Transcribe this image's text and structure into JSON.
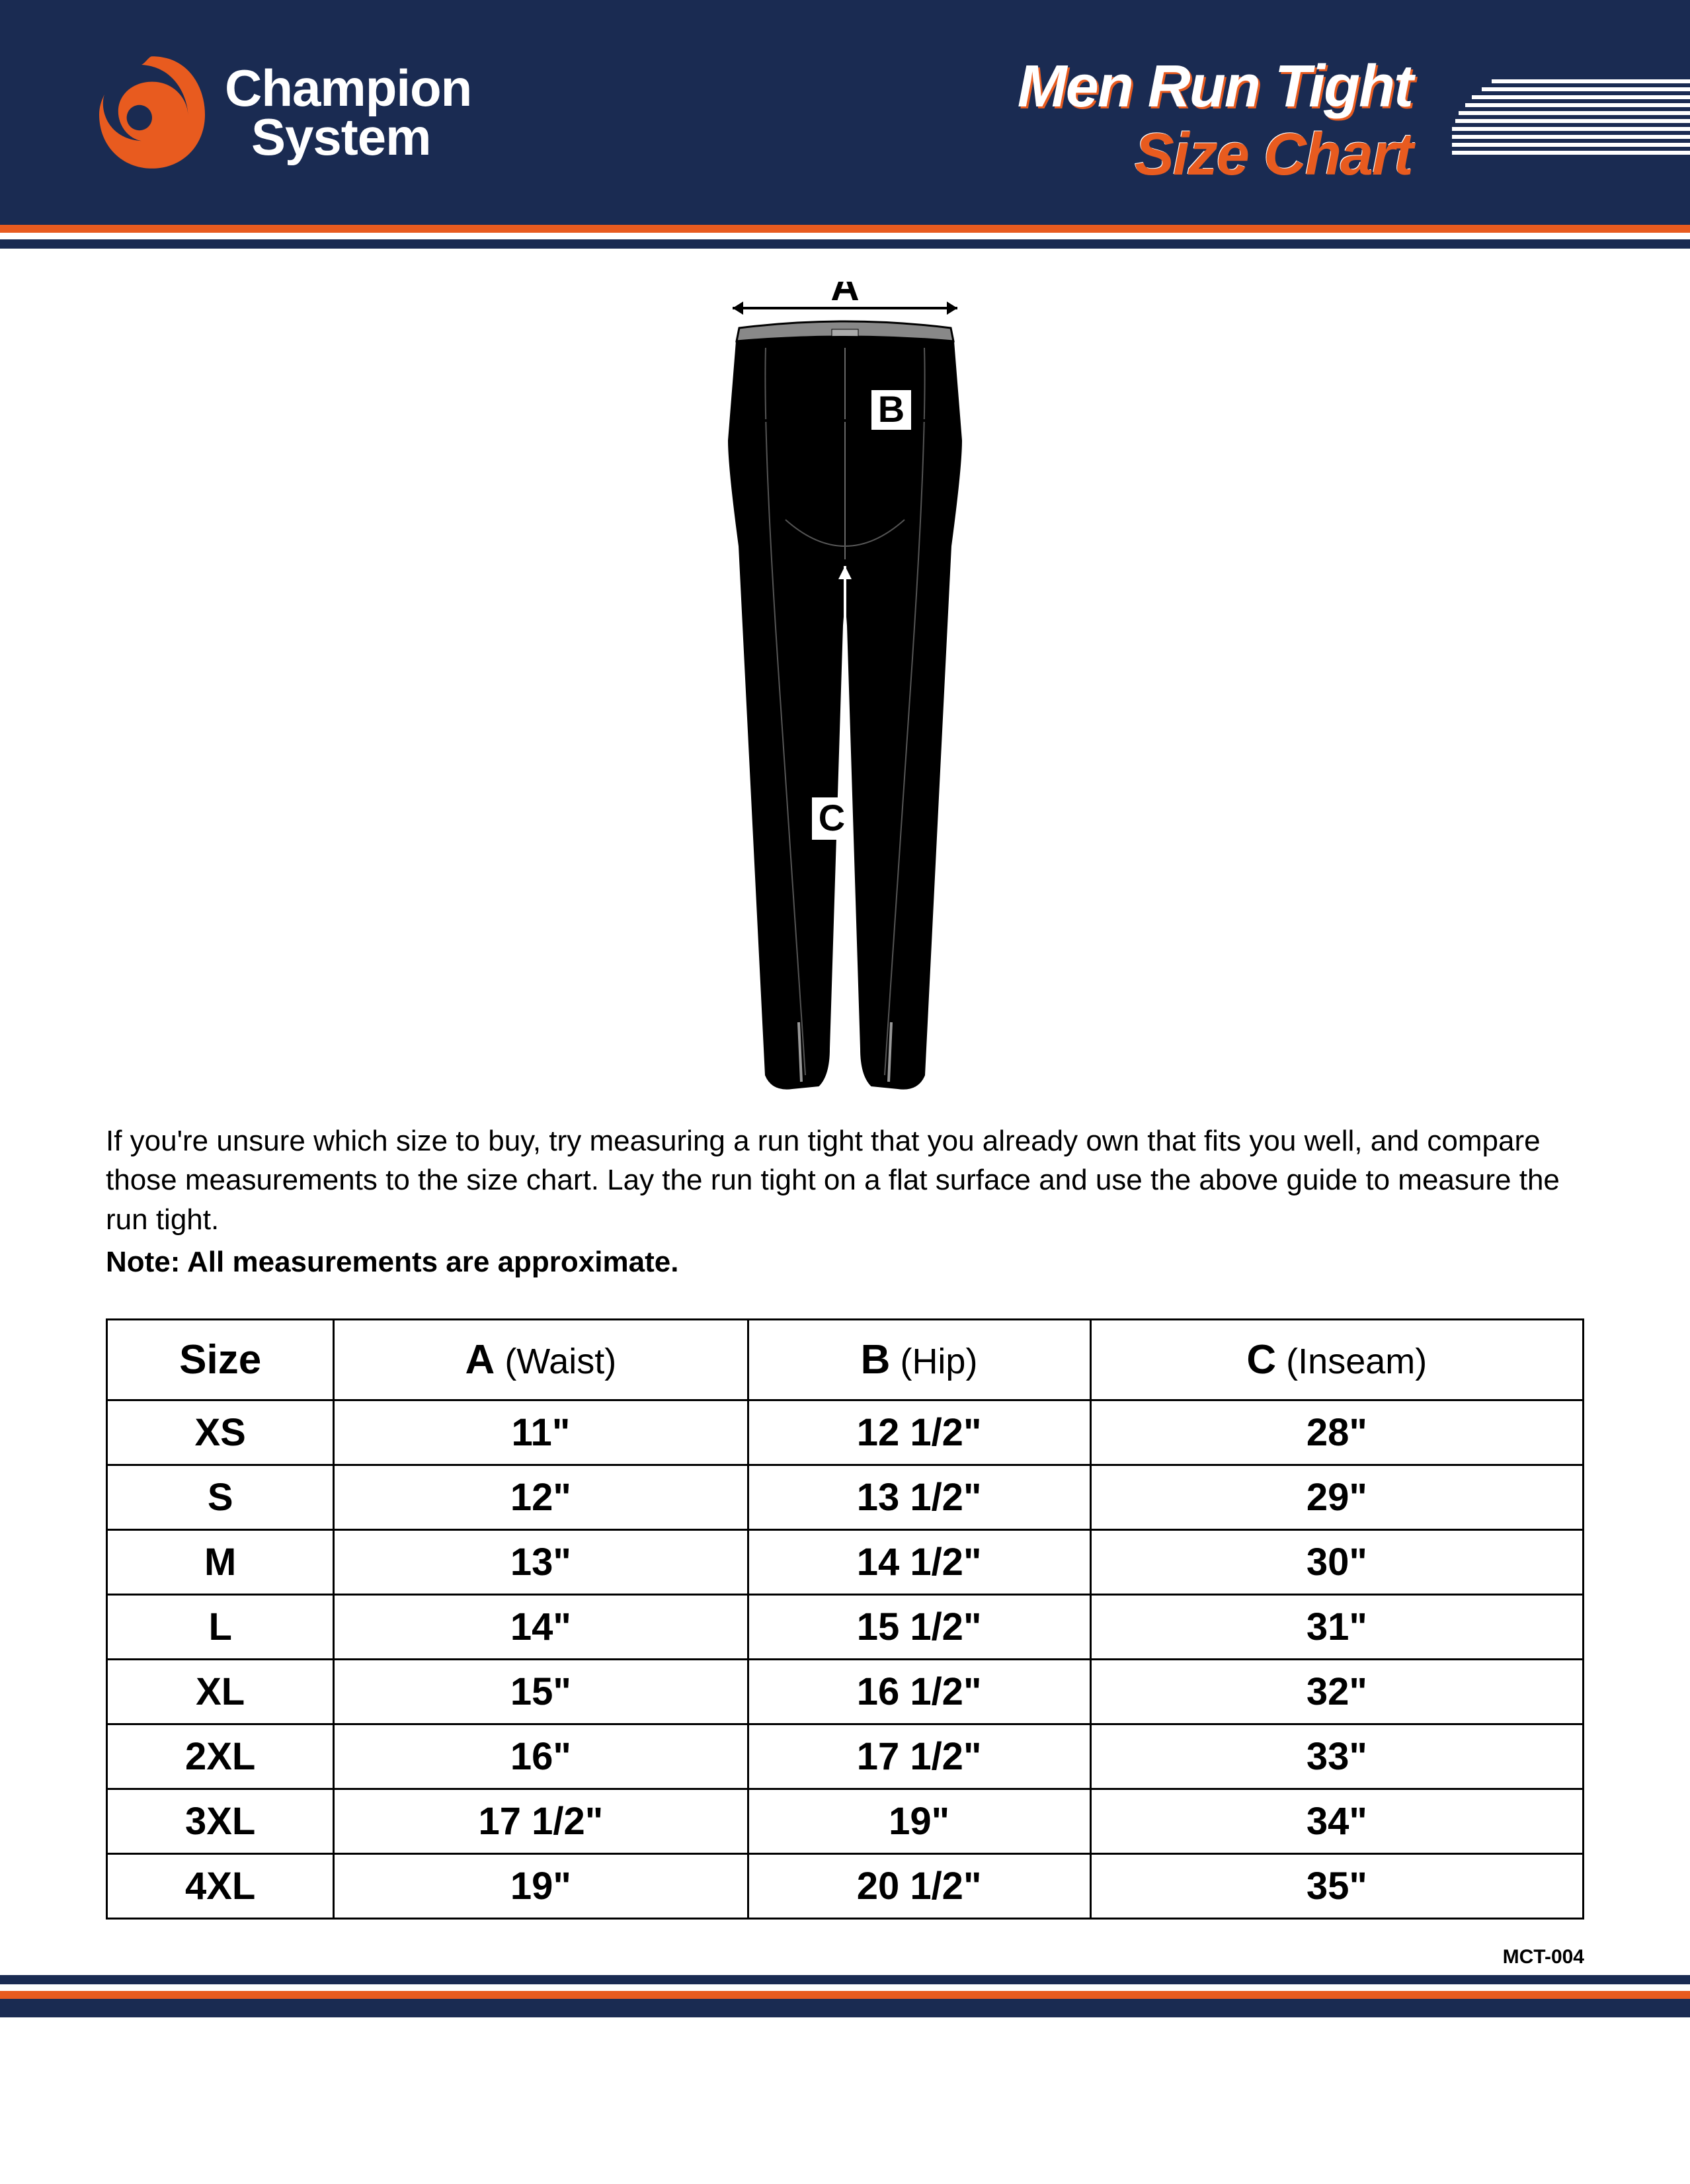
{
  "brand": {
    "name_line1": "Champion",
    "name_line2": "System",
    "logo_color": "#e85b1f"
  },
  "title": {
    "line1": "Men Run Tight",
    "line2": "Size Chart"
  },
  "colors": {
    "navy": "#1a2b52",
    "orange": "#e85b1f",
    "white": "#ffffff",
    "black": "#000000"
  },
  "diagram": {
    "label_a": "A",
    "label_b": "B",
    "label_c": "C"
  },
  "instructions_text": "If you're unsure which size to buy, try measuring a run tight that you already own that fits you well, and compare those measurements to the size chart. Lay the run tight on a flat surface and use the above guide to measure the run tight.",
  "note_text": "Note: All measurements are approximate.",
  "table": {
    "headers": {
      "size": "Size",
      "a_label": "A",
      "a_suffix": " (Waist)",
      "b_label": "B",
      "b_suffix": " (Hip)",
      "c_label": "C",
      "c_suffix": " (Inseam)"
    },
    "rows": [
      {
        "size": "XS",
        "a": "11\"",
        "b": "12 1/2\"",
        "c": "28\""
      },
      {
        "size": "S",
        "a": "12\"",
        "b": "13 1/2\"",
        "c": "29\""
      },
      {
        "size": "M",
        "a": "13\"",
        "b": "14 1/2\"",
        "c": "30\""
      },
      {
        "size": "L",
        "a": "14\"",
        "b": "15 1/2\"",
        "c": "31\""
      },
      {
        "size": "XL",
        "a": "15\"",
        "b": "16 1/2\"",
        "c": "32\""
      },
      {
        "size": "2XL",
        "a": "16\"",
        "b": "17 1/2\"",
        "c": "33\""
      },
      {
        "size": "3XL",
        "a": "17 1/2\"",
        "b": "19\"",
        "c": "34\""
      },
      {
        "size": "4XL",
        "a": "19\"",
        "b": "20 1/2\"",
        "c": "35\""
      }
    ]
  },
  "doc_code": "MCT-004"
}
